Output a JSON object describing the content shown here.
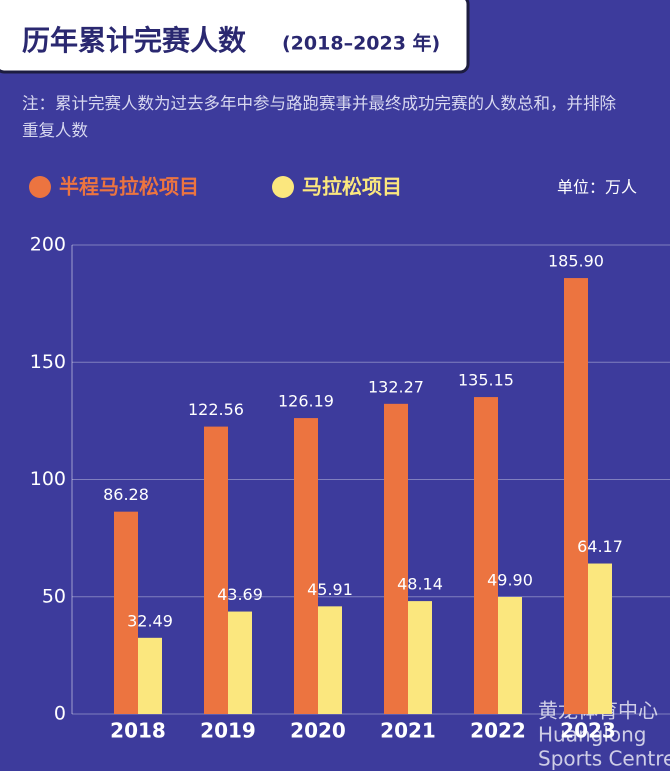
{
  "chart_data": {
    "type": "bar",
    "title": "历年累计完赛人数",
    "subtitle": "(2018–2023 年)",
    "note": "注：累计完赛人数为过去多年中参与路跑赛事并最终成功完赛的人数总和，并排除重复人数",
    "unit": "单位：万人",
    "watermark": [
      "黄龙体育中心",
      "Huanglong",
      "Sports Centre"
    ],
    "categories": [
      "2018",
      "2019",
      "2020",
      "2021",
      "2022",
      "2023"
    ],
    "series": [
      {
        "name": "半程马拉松项目",
        "color": "#ec7440",
        "values": [
          86.28,
          122.56,
          126.19,
          132.27,
          135.15,
          185.9
        ],
        "value_labels": [
          "86.28",
          "122.56",
          "126.19",
          "132.27",
          "135.15",
          "185.90"
        ]
      },
      {
        "name": "马拉松项目",
        "color": "#fbe77e",
        "values": [
          32.49,
          43.69,
          45.91,
          48.14,
          49.9,
          64.17
        ],
        "value_labels": [
          "32.49",
          "43.69",
          "45.91",
          "48.14",
          "49.90",
          "64.17"
        ]
      }
    ],
    "ylim": [
      0,
      200
    ],
    "yticks": [
      0,
      50,
      100,
      150,
      200
    ],
    "grid": true
  }
}
